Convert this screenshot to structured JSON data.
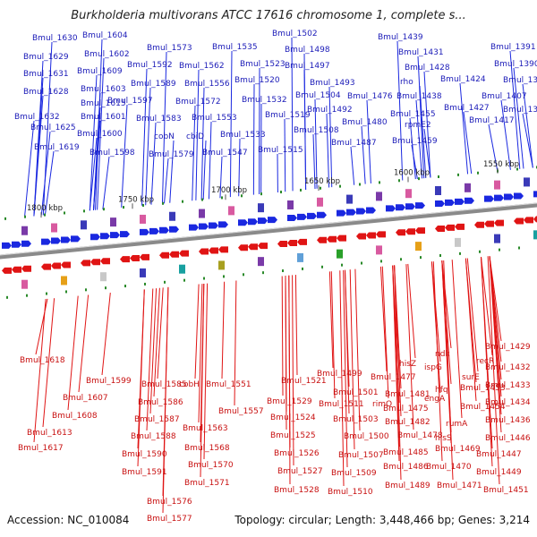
{
  "title": "Burkholderia multivorans ATCC 17616 chromosome 1, complete s...",
  "footer": {
    "accession": "Accession: NC_010084",
    "summary": "Topology: circular; Length: 3,448,466 bp; Genes: 3,214"
  },
  "colors": {
    "forward_gene": "#1a28e0",
    "reverse_gene": "#e01414",
    "backbone": "#8a8a8a",
    "tick": "#2a8a2a",
    "forward_label": "#1b1bb8",
    "reverse_label": "#c81010"
  },
  "scale_labels": [
    "1800 kbp",
    "1750 kbp",
    "1700 kbp",
    "1650 kbp",
    "1600 kbp",
    "1550 kbp"
  ],
  "forward_labels": [
    "Bmul_1630",
    "Bmul_1604",
    "Bmul_1629",
    "Bmul_1602",
    "Bmul_1573",
    "Bmul_1535",
    "Bmul_1502",
    "Bmul_1498",
    "Bmul_1631",
    "Bmul_1609",
    "Bmul_1592",
    "Bmul_1562",
    "Bmul_1523",
    "Bmul_1497",
    "Bmul_1603",
    "Bmul_1589",
    "Bmul_1556",
    "Bmul_1520",
    "Bmul_1493",
    "Bmul_1628",
    "Bmul_1597",
    "Bmul_1572",
    "Bmul_1532",
    "Bmul_1504",
    "Bmul_1615",
    "Bmul_1492",
    "Bmul_1476",
    "Bmul_1632",
    "Bmul_1601",
    "Bmul_1583",
    "Bmul_1553",
    "Bmul_1519",
    "Bmul_1625",
    "Bmul_1600",
    "cobN",
    "cbiD",
    "Bmul_1533",
    "Bmul_1508",
    "Bmul_1480",
    "Bmul_1487",
    "Bmul_1619",
    "Bmul_1598",
    "Bmul_1579",
    "Bmul_1547",
    "Bmul_1515",
    "Bmul_1439",
    "Bmul_1431",
    "Bmul_1428",
    "rho",
    "Bmul_1424",
    "Bmul_1438",
    "Bmul_1427",
    "rpmE2",
    "Bmul_1455",
    "Bmul_1459",
    "Bmul_1391",
    "Bmul_1390",
    "Bmul_1389",
    "Bmul_1407",
    "Bmul_1396",
    "Bmul_1417"
  ],
  "reverse_labels": [
    "Bmul_1618",
    "Bmul_1599",
    "Bmul_1607",
    "Bmul_1608",
    "Bmul_1613",
    "Bmul_1617",
    "Bmul_1585",
    "Bmul_1586",
    "Bmul_1587",
    "Bmul_1588",
    "Bmul_1590",
    "Bmul_1591",
    "cobH",
    "Bmul_1557",
    "Bmul_1563",
    "Bmul_1568",
    "Bmul_1570",
    "Bmul_1571",
    "Bmul_1576",
    "Bmul_1577",
    "Bmul_1551",
    "Bmul_1521",
    "Bmul_1529",
    "Bmul_1524",
    "Bmul_1525",
    "Bmul_1526",
    "Bmul_1527",
    "Bmul_1528",
    "Bmul_1499",
    "Bmul_1501",
    "Bmul_1511",
    "Bmul_1503",
    "Bmul_1500",
    "Bmul_1507",
    "Bmul_1509",
    "Bmul_1510",
    "Bmul_1477",
    "hisZ",
    "Bmul_1481",
    "ispG",
    "ndk",
    "hfq",
    "rimO",
    "Bmul_1475",
    "Bmul_1482",
    "Bmul_1478",
    "Bmul_1485",
    "Bmul_1486",
    "Bmul_1489",
    "engA",
    "hisS",
    "Bmul_1469",
    "Bmul_1470",
    "Bmul_1471",
    "recR",
    "surE",
    "Bmul_1453",
    "Bmul_1454",
    "rumA",
    "Bmul_1429",
    "Bmul_1432",
    "Bmul_1433",
    "Bmul_1434",
    "Bmul_1436",
    "Bmul_1446",
    "Bmul_1447",
    "Bmul_1449",
    "Bmul_1451"
  ]
}
